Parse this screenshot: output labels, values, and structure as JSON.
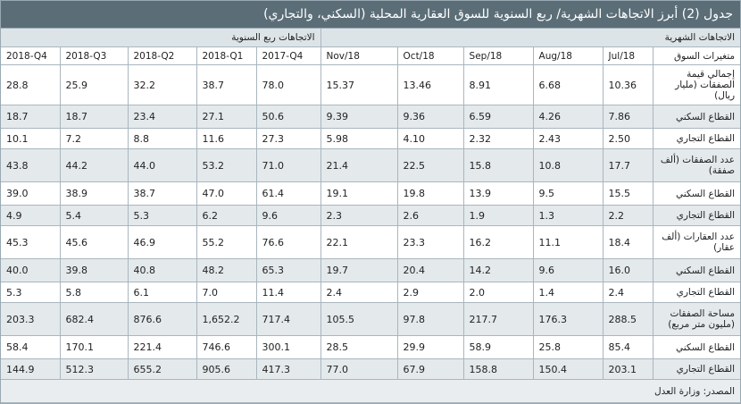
{
  "title": "جدول (2) أبرز الاتجاهات الشهرية/ ربع السنوية للسوق العقارية المحلية (السكني، والتجاري)",
  "groups": {
    "quarterly": "الاتجاهات ربع السنوية",
    "monthly": "الاتجاهات الشهرية"
  },
  "columns": {
    "q4_2018": "2018-Q4",
    "q3_2018": "2018-Q3",
    "q2_2018": "2018-Q2",
    "q1_2018": "2018-Q1",
    "q4_2017": "2017-Q4",
    "nov18": "Nov/18",
    "oct18": "Oct/18",
    "sep18": "Sep/18",
    "aug18": "Aug/18",
    "jul18": "Jul/18",
    "variable": "متغيرات السوق"
  },
  "rows": [
    {
      "label": "إجمالي قيمة الصفقات (مليار ريال)",
      "values": [
        "28.8",
        "25.9",
        "32.2",
        "38.7",
        "78.0",
        "15.37",
        "13.46",
        "8.91",
        "6.68",
        "10.36"
      ]
    },
    {
      "label": "القطاع السكني",
      "values": [
        "18.7",
        "18.7",
        "23.4",
        "27.1",
        "50.6",
        "9.39",
        "9.36",
        "6.59",
        "4.26",
        "7.86"
      ]
    },
    {
      "label": "القطاع التجاري",
      "values": [
        "10.1",
        "7.2",
        "8.8",
        "11.6",
        "27.3",
        "5.98",
        "4.10",
        "2.32",
        "2.43",
        "2.50"
      ]
    },
    {
      "label": "عدد الصفقات (ألف صفقة)",
      "values": [
        "43.8",
        "44.2",
        "44.0",
        "53.2",
        "71.0",
        "21.4",
        "22.5",
        "15.8",
        "10.8",
        "17.7"
      ]
    },
    {
      "label": "القطاع السكني",
      "values": [
        "39.0",
        "38.9",
        "38.7",
        "47.0",
        "61.4",
        "19.1",
        "19.8",
        "13.9",
        "9.5",
        "15.5"
      ]
    },
    {
      "label": "القطاع التجاري",
      "values": [
        "4.9",
        "5.4",
        "5.3",
        "6.2",
        "9.6",
        "2.3",
        "2.6",
        "1.9",
        "1.3",
        "2.2"
      ]
    },
    {
      "label": "عدد العقارات (ألف عقار)",
      "values": [
        "45.3",
        "45.6",
        "46.9",
        "55.2",
        "76.6",
        "22.1",
        "23.3",
        "16.2",
        "11.1",
        "18.4"
      ]
    },
    {
      "label": "القطاع السكني",
      "values": [
        "40.0",
        "39.8",
        "40.8",
        "48.2",
        "65.3",
        "19.7",
        "20.4",
        "14.2",
        "9.6",
        "16.0"
      ]
    },
    {
      "label": "القطاع التجاري",
      "values": [
        "5.3",
        "5.8",
        "6.1",
        "7.0",
        "11.4",
        "2.4",
        "2.9",
        "2.0",
        "1.4",
        "2.4"
      ]
    },
    {
      "label": "مساحة الصفقات (مليون متر مربع)",
      "values": [
        "203.3",
        "682.4",
        "876.6",
        "1,652.2",
        "717.4",
        "105.5",
        "97.8",
        "217.7",
        "176.3",
        "288.5"
      ]
    },
    {
      "label": "القطاع السكني",
      "values": [
        "58.4",
        "170.1",
        "221.4",
        "746.6",
        "300.1",
        "28.5",
        "29.9",
        "58.9",
        "25.8",
        "85.4"
      ]
    },
    {
      "label": "القطاع التجاري",
      "values": [
        "144.9",
        "512.3",
        "655.2",
        "905.6",
        "417.3",
        "77.0",
        "67.9",
        "158.8",
        "150.4",
        "203.1"
      ]
    }
  ],
  "source": "المصدر: وزارة العدل",
  "colors": {
    "title_bg": "#5b6e78",
    "group_bg": "#dde4e8",
    "shaded_row": "#e4e9ec",
    "border": "#a9b6be"
  }
}
